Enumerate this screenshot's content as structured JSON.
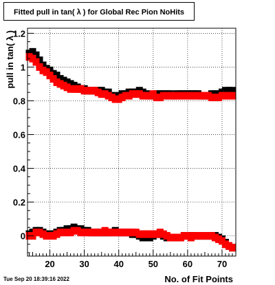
{
  "timestamp": "Tue Sep 20 18:39:16 2022",
  "chart_data": {
    "type": "scatter",
    "title": "Fitted pull in tan( λ ) for Global Rec Pion NoHits",
    "xlabel": "No. of Fit Points",
    "ylabel": "pull in tan( λ )",
    "xlim": [
      13.5,
      74
    ],
    "ylim": [
      -0.12,
      1.23
    ],
    "grid": true,
    "xticks": [
      20,
      30,
      40,
      50,
      60,
      70
    ],
    "xtick_labels": [
      "20",
      "30",
      "40",
      "50",
      "60",
      "70"
    ],
    "yticks": [
      0,
      0.2,
      0.4,
      0.6,
      0.8,
      1.0,
      1.2
    ],
    "ytick_labels": [
      "0",
      "0.2",
      "0.4",
      "0.6",
      "0.8",
      "1",
      "1.2"
    ],
    "colors": {
      "series_black": "#000000",
      "series_red": "#ff0000"
    },
    "series": [
      {
        "color": "#000000",
        "x": [
          14,
          15,
          16,
          17,
          18,
          19,
          20,
          21,
          22,
          23,
          24,
          25,
          26,
          27,
          28,
          29,
          30,
          31,
          32,
          33,
          34,
          35,
          36,
          37,
          38,
          39,
          40,
          41,
          42,
          43,
          44,
          45,
          46,
          47,
          48,
          49,
          50,
          51,
          52,
          53,
          54,
          55,
          56,
          57,
          58,
          59,
          60,
          61,
          62,
          63,
          64,
          65,
          66,
          67,
          68,
          69,
          70,
          71,
          72,
          73
        ],
        "y": [
          1.08,
          1.09,
          1.07,
          1.04,
          1.01,
          0.99,
          0.98,
          0.96,
          0.95,
          0.93,
          0.92,
          0.91,
          0.9,
          0.89,
          0.88,
          0.87,
          0.87,
          0.86,
          0.86,
          0.86,
          0.86,
          0.86,
          0.85,
          0.85,
          0.83,
          0.82,
          0.83,
          0.84,
          0.84,
          0.85,
          0.85,
          0.85,
          0.86,
          0.85,
          0.84,
          0.83,
          0.83,
          0.84,
          0.84,
          0.84,
          0.84,
          0.84,
          0.83,
          0.84,
          0.84,
          0.84,
          0.84,
          0.84,
          0.84,
          0.84,
          0.83,
          0.83,
          0.83,
          0.84,
          0.84,
          0.84,
          0.85,
          0.86,
          0.86,
          0.86
        ]
      },
      {
        "color": "#ff0000",
        "x": [
          14,
          15,
          16,
          17,
          18,
          19,
          20,
          21,
          22,
          23,
          24,
          25,
          26,
          27,
          28,
          29,
          30,
          31,
          32,
          33,
          34,
          35,
          36,
          37,
          38,
          39,
          40,
          41,
          42,
          43,
          44,
          45,
          46,
          47,
          48,
          49,
          50,
          51,
          52,
          53,
          54,
          55,
          56,
          57,
          58,
          59,
          60,
          61,
          62,
          63,
          64,
          65,
          66,
          67,
          68,
          69,
          70,
          71,
          72,
          73
        ],
        "y": [
          1.06,
          1.05,
          1.03,
          1.0,
          0.98,
          0.97,
          0.95,
          0.93,
          0.91,
          0.9,
          0.89,
          0.88,
          0.87,
          0.87,
          0.87,
          0.87,
          0.86,
          0.86,
          0.86,
          0.86,
          0.85,
          0.84,
          0.84,
          0.83,
          0.82,
          0.81,
          0.81,
          0.82,
          0.83,
          0.83,
          0.84,
          0.84,
          0.84,
          0.83,
          0.83,
          0.83,
          0.84,
          0.82,
          0.82,
          0.83,
          0.83,
          0.83,
          0.83,
          0.83,
          0.83,
          0.83,
          0.83,
          0.83,
          0.83,
          0.83,
          0.83,
          0.83,
          0.83,
          0.82,
          0.82,
          0.82,
          0.83,
          0.83,
          0.83,
          0.83
        ]
      },
      {
        "color": "#000000",
        "x": [
          14,
          15,
          16,
          17,
          18,
          19,
          20,
          21,
          22,
          23,
          24,
          25,
          26,
          27,
          28,
          29,
          30,
          31,
          32,
          33,
          34,
          35,
          36,
          37,
          38,
          39,
          40,
          41,
          42,
          43,
          44,
          45,
          46,
          47,
          48,
          49,
          50,
          51,
          52,
          53,
          54,
          55,
          56,
          57,
          58,
          59,
          60,
          61,
          62,
          63,
          64,
          65,
          66,
          67,
          68,
          69,
          70,
          71,
          72,
          73
        ],
        "y": [
          0.01,
          0.02,
          0.03,
          0.03,
          0.02,
          0.01,
          0.01,
          0.01,
          0.02,
          0.03,
          0.03,
          0.04,
          0.04,
          0.05,
          0.04,
          0.04,
          0.03,
          0.03,
          0.02,
          0.02,
          0.02,
          0.02,
          0.02,
          0.02,
          0.02,
          0.03,
          0.02,
          0.02,
          0.02,
          0.02,
          0.01,
          0.01,
          0.0,
          -0.01,
          -0.01,
          -0.01,
          0.0,
          0.01,
          0.01,
          0.0,
          -0.01,
          -0.01,
          -0.01,
          -0.01,
          -0.01,
          0.0,
          0.0,
          0.0,
          0.0,
          0.0,
          0.0,
          0.0,
          0.0,
          0.0,
          0.0,
          -0.01,
          -0.02,
          -0.04,
          -0.06,
          -0.07
        ]
      },
      {
        "color": "#ff0000",
        "x": [
          14,
          15,
          16,
          17,
          18,
          19,
          20,
          21,
          22,
          23,
          24,
          25,
          26,
          27,
          28,
          29,
          30,
          31,
          32,
          33,
          34,
          35,
          36,
          37,
          38,
          39,
          40,
          41,
          42,
          43,
          44,
          45,
          46,
          47,
          48,
          49,
          50,
          51,
          52,
          53,
          54,
          55,
          56,
          57,
          58,
          59,
          60,
          61,
          62,
          63,
          64,
          65,
          66,
          67,
          68,
          69,
          70,
          71,
          72,
          73
        ],
        "y": [
          0.0,
          0.0,
          0.02,
          0.02,
          0.01,
          0.0,
          0.0,
          0.0,
          0.01,
          0.02,
          0.02,
          0.02,
          0.02,
          0.03,
          0.03,
          0.02,
          0.02,
          0.02,
          0.02,
          0.02,
          0.02,
          0.02,
          0.03,
          0.02,
          0.02,
          0.02,
          0.02,
          0.02,
          0.02,
          0.02,
          0.02,
          0.02,
          0.01,
          0.01,
          0.01,
          0.01,
          0.01,
          0.01,
          0.02,
          0.01,
          0.0,
          -0.01,
          -0.01,
          -0.01,
          -0.01,
          0.0,
          0.0,
          -0.01,
          0.0,
          0.0,
          0.0,
          0.0,
          0.0,
          0.0,
          -0.01,
          -0.02,
          -0.03,
          -0.05,
          -0.06,
          -0.07
        ]
      }
    ]
  }
}
